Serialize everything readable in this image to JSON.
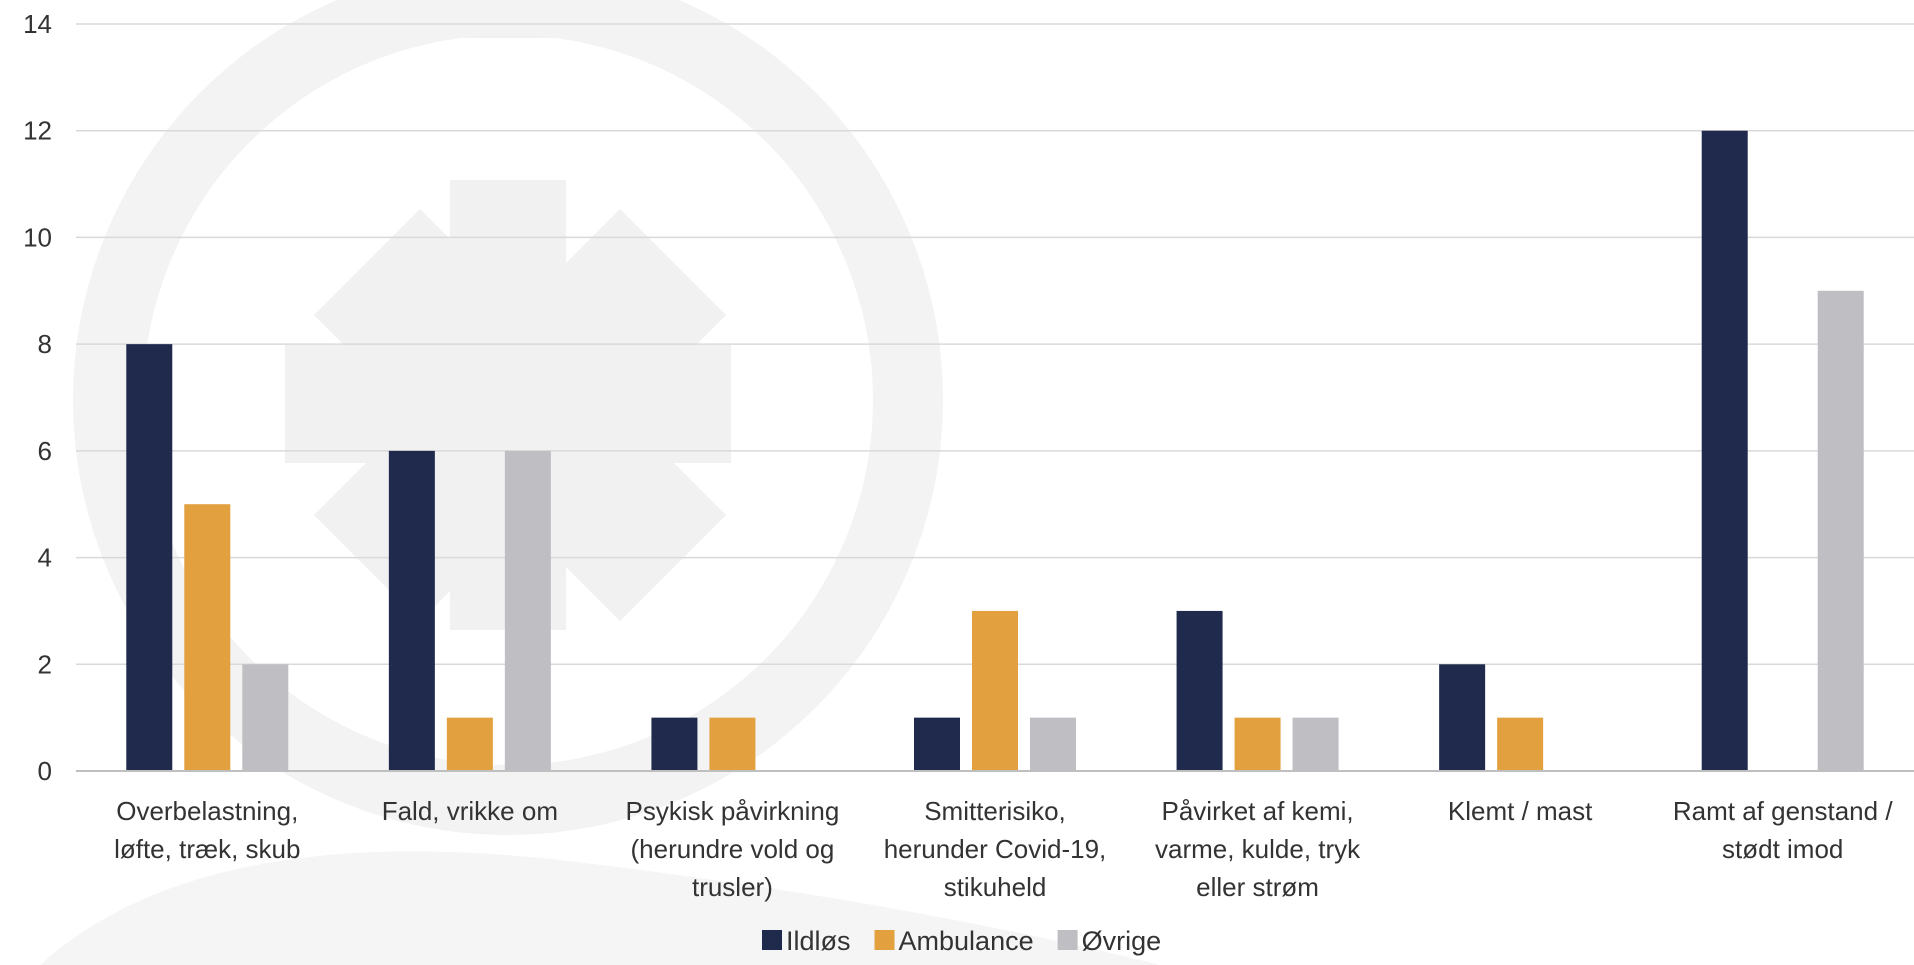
{
  "chart_data": {
    "type": "bar",
    "title": "",
    "xlabel": "",
    "ylabel": "",
    "ylim": [
      0,
      14
    ],
    "yticks": [
      0,
      2,
      4,
      6,
      8,
      10,
      12,
      14
    ],
    "grid": true,
    "legend_position": "bottom",
    "categories": [
      [
        "Overbelastning,",
        "løfte, træk, skub"
      ],
      [
        "Fald, vrikke om"
      ],
      [
        "Psykisk påvirkning",
        "(herundre vold og",
        "trusler)"
      ],
      [
        "Smitterisiko,",
        "herunder Covid-19,",
        "stikuheld"
      ],
      [
        "Påvirket af kemi,",
        "varme, kulde, tryk",
        "eller strøm"
      ],
      [
        "Klemt / mast"
      ],
      [
        "Ramt af genstand /",
        "stødt imod"
      ]
    ],
    "series": [
      {
        "name": "Ildløs",
        "color": "#1f2a4d",
        "values": [
          8,
          6,
          1,
          1,
          3,
          2,
          12
        ]
      },
      {
        "name": "Ambulance",
        "color": "#e2a03f",
        "values": [
          5,
          1,
          1,
          3,
          1,
          1,
          0
        ]
      },
      {
        "name": "Øvrige",
        "color": "#bfbec3",
        "values": [
          2,
          6,
          0,
          1,
          1,
          0,
          9
        ]
      }
    ]
  }
}
